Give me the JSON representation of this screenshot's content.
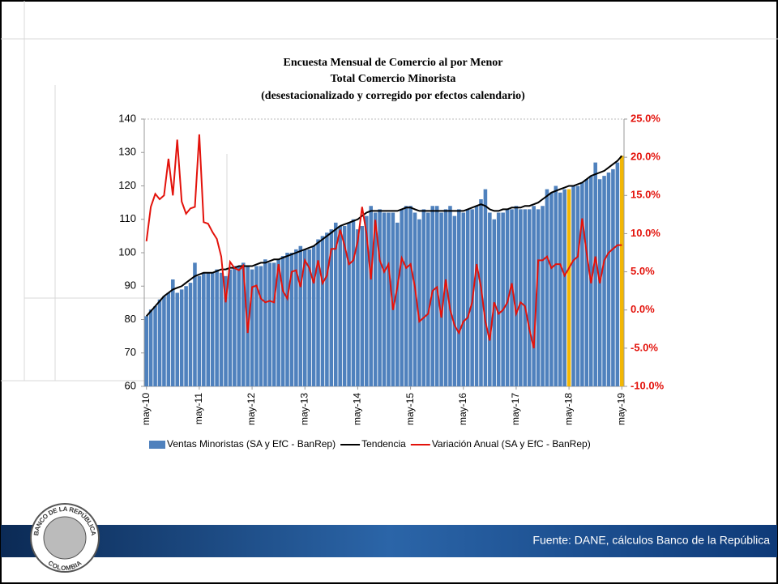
{
  "chart_data": {
    "type": "bar",
    "title": [
      "Encuesta Mensual de Comercio al por Menor",
      "Total Comercio Minorista",
      "(desestacionalizado y corregido por efectos calendario)"
    ],
    "categories": [
      "may-10",
      null,
      null,
      null,
      null,
      null,
      null,
      null,
      null,
      null,
      null,
      null,
      "may-11",
      null,
      null,
      null,
      null,
      null,
      null,
      null,
      null,
      null,
      null,
      null,
      "may-12",
      null,
      null,
      null,
      null,
      null,
      null,
      null,
      null,
      null,
      null,
      null,
      "may-13",
      null,
      null,
      null,
      null,
      null,
      null,
      null,
      null,
      null,
      null,
      null,
      "may-14",
      null,
      null,
      null,
      null,
      null,
      null,
      null,
      null,
      null,
      null,
      null,
      "may-15",
      null,
      null,
      null,
      null,
      null,
      null,
      null,
      null,
      null,
      null,
      null,
      "may-16",
      null,
      null,
      null,
      null,
      null,
      null,
      null,
      null,
      null,
      null,
      null,
      "may-17",
      null,
      null,
      null,
      null,
      null,
      null,
      null,
      null,
      null,
      null,
      null,
      "may-18",
      null,
      null,
      null,
      null,
      null,
      null,
      null,
      null,
      null,
      null,
      null,
      "may-19"
    ],
    "series": [
      {
        "name": "Ventas Minoristas (SA y EfC - BanRep)",
        "type": "bar",
        "color": "#4f81bd",
        "values": [
          81,
          83,
          84,
          86,
          87,
          88,
          92,
          88,
          89,
          90,
          91,
          97,
          93,
          94,
          94,
          94,
          95,
          94,
          93,
          95,
          96,
          96,
          97,
          96,
          95,
          96,
          96,
          98,
          97,
          97,
          98,
          99,
          100,
          100,
          101,
          102,
          101,
          101,
          102,
          104,
          105,
          106,
          107,
          109,
          108,
          108,
          109,
          110,
          107,
          108,
          111,
          114,
          112,
          113,
          112,
          112,
          112,
          109,
          113,
          114,
          114,
          112,
          110,
          113,
          112,
          114,
          114,
          112,
          113,
          114,
          111,
          113,
          112,
          113,
          113,
          114,
          116,
          119,
          112,
          110,
          112,
          112,
          113,
          113,
          114,
          113,
          113,
          113,
          114,
          113,
          114,
          119,
          118,
          120,
          118,
          119,
          119,
          120,
          120,
          121,
          122,
          123,
          127,
          122,
          123,
          124,
          125,
          127,
          129
        ]
      },
      {
        "name": "Tendencia",
        "type": "line",
        "color": "#000000",
        "values": [
          81,
          82.5,
          84,
          85.5,
          87,
          88,
          89,
          89.5,
          90,
          91,
          92,
          93,
          93.5,
          94,
          94,
          94,
          94.5,
          95,
          95,
          95.5,
          95.5,
          96,
          96,
          96,
          96,
          96.5,
          97,
          97,
          97.5,
          98,
          98,
          98.5,
          99,
          99.5,
          100,
          100.5,
          101,
          101.5,
          102,
          103,
          104,
          105,
          106,
          107,
          108,
          108.5,
          109,
          109.5,
          110,
          111,
          112,
          112.5,
          112.5,
          112.5,
          112.5,
          112.5,
          112.5,
          112.5,
          113,
          113.5,
          113.5,
          113,
          112.5,
          112.5,
          112.5,
          112.5,
          112.5,
          112.5,
          112.5,
          112.5,
          112.5,
          112.5,
          112.5,
          113,
          113.5,
          114,
          114.5,
          114,
          113,
          112.5,
          112.5,
          113,
          113,
          113.5,
          113.5,
          113.5,
          114,
          114,
          114.5,
          115,
          116,
          117,
          118,
          118.5,
          119,
          119.5,
          120,
          120,
          120.5,
          121,
          122,
          123,
          123.5,
          124,
          124.5,
          125.5,
          126.5,
          127.5,
          129
        ]
      },
      {
        "name": "Variación Anual (SA y EfC - BanRep)",
        "type": "line",
        "color": "#e3120b",
        "axis": "y2",
        "values": [
          9,
          13.5,
          15.2,
          14.5,
          15,
          19.8,
          15,
          22.3,
          14.2,
          12.6,
          13.3,
          13.5,
          23,
          11.5,
          11.3,
          10.2,
          9.3,
          7,
          1,
          6.3,
          5.5,
          5.2,
          5.8,
          -3,
          3,
          3.2,
          1.5,
          1,
          1.2,
          1,
          6,
          2.5,
          1.5,
          5,
          5.2,
          3,
          6.5,
          5.5,
          3.5,
          6.5,
          3.5,
          4.5,
          8,
          8,
          10.5,
          8.5,
          6,
          6.5,
          9,
          13.5,
          10,
          4,
          11.8,
          6.5,
          5,
          6,
          0,
          3,
          6.8,
          5.5,
          6,
          3,
          -1.5,
          -1,
          -0.5,
          2.5,
          3,
          -1,
          4,
          0,
          -2,
          -3,
          -1.5,
          -1,
          1,
          6,
          3,
          -1.5,
          -4,
          1,
          -0.5,
          0,
          1,
          3.5,
          -0.5,
          1,
          0.5,
          -2.5,
          -5,
          6.5,
          6.5,
          7,
          5.5,
          6,
          6,
          4.5,
          5.5,
          6.5,
          7,
          12,
          7.5,
          3.5,
          7,
          3.5,
          6.5,
          7.5,
          8,
          8.5,
          8.5
        ]
      }
    ],
    "highlight": {
      "color": "#f2b705",
      "indices": [
        96,
        108
      ]
    },
    "ylim": [
      60,
      140
    ],
    "yticks": [
      60,
      70,
      80,
      90,
      100,
      110,
      120,
      130,
      140
    ],
    "y2lim": [
      -10,
      25
    ],
    "y2ticks": [
      {
        "value": -10,
        "label": "-10.0%"
      },
      {
        "value": -5,
        "label": "-5.0%"
      },
      {
        "value": 0,
        "label": "0.0%"
      },
      {
        "value": 5,
        "label": "5.0%"
      },
      {
        "value": 10,
        "label": "10.0%"
      },
      {
        "value": 15,
        "label": "15.0%"
      },
      {
        "value": 20,
        "label": "20.0%"
      },
      {
        "value": 25,
        "label": "25.0%"
      }
    ],
    "y2_color": "#e3120b",
    "grid": false
  },
  "footer": {
    "source": "Fuente: DANE, cálculos Banco de la República",
    "logo_top": "BANCO DE LA REPÚBLICA",
    "logo_bottom": "COLOMBIA"
  }
}
